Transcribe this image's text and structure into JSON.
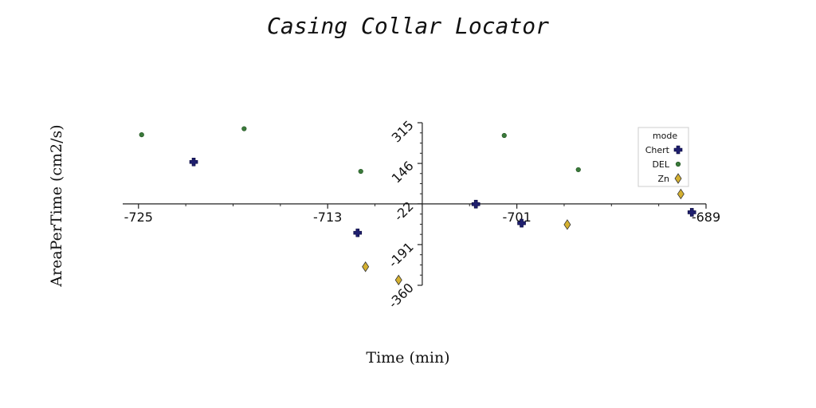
{
  "chart_data": {
    "type": "scatter",
    "title": "Casing Collar Locator",
    "xlabel": "Time (min)",
    "ylabel": "AreaPerTime (cm2/s)",
    "xlim": [
      -726,
      -689
    ],
    "ylim": [
      -360,
      315
    ],
    "x_ticks": [
      "-725",
      "-713",
      "-701",
      "-689"
    ],
    "y_ticks": [
      "315",
      "146",
      "-22",
      "-191",
      "-360"
    ],
    "x_tick_values": [
      -725,
      -713,
      -701,
      -689
    ],
    "y_tick_values": [
      315,
      146,
      -22,
      -191,
      -360
    ],
    "axis_cross": {
      "x": -707,
      "y": -22
    },
    "grid": false,
    "legend": {
      "title": "mode",
      "position": "top-right"
    },
    "series": [
      {
        "name": "Chert",
        "marker": "plus",
        "color": "#1f1f6e",
        "points": [
          {
            "x": -721.5,
            "y": 152
          },
          {
            "x": -711.1,
            "y": -142
          },
          {
            "x": -703.6,
            "y": -23
          },
          {
            "x": -700.7,
            "y": -102
          },
          {
            "x": -689.9,
            "y": -57
          }
        ]
      },
      {
        "name": "DEL",
        "marker": "circle",
        "color": "#3a7a3a",
        "points": [
          {
            "x": -724.8,
            "y": 265
          },
          {
            "x": -718.3,
            "y": 290
          },
          {
            "x": -710.9,
            "y": 113
          },
          {
            "x": -701.8,
            "y": 262
          },
          {
            "x": -697.1,
            "y": 120
          }
        ]
      },
      {
        "name": "Zn",
        "marker": "diamond",
        "color": "#d4b030",
        "points": [
          {
            "x": -710.6,
            "y": -283
          },
          {
            "x": -708.5,
            "y": -338
          },
          {
            "x": -697.8,
            "y": -108
          },
          {
            "x": -690.6,
            "y": 19
          }
        ]
      }
    ]
  }
}
